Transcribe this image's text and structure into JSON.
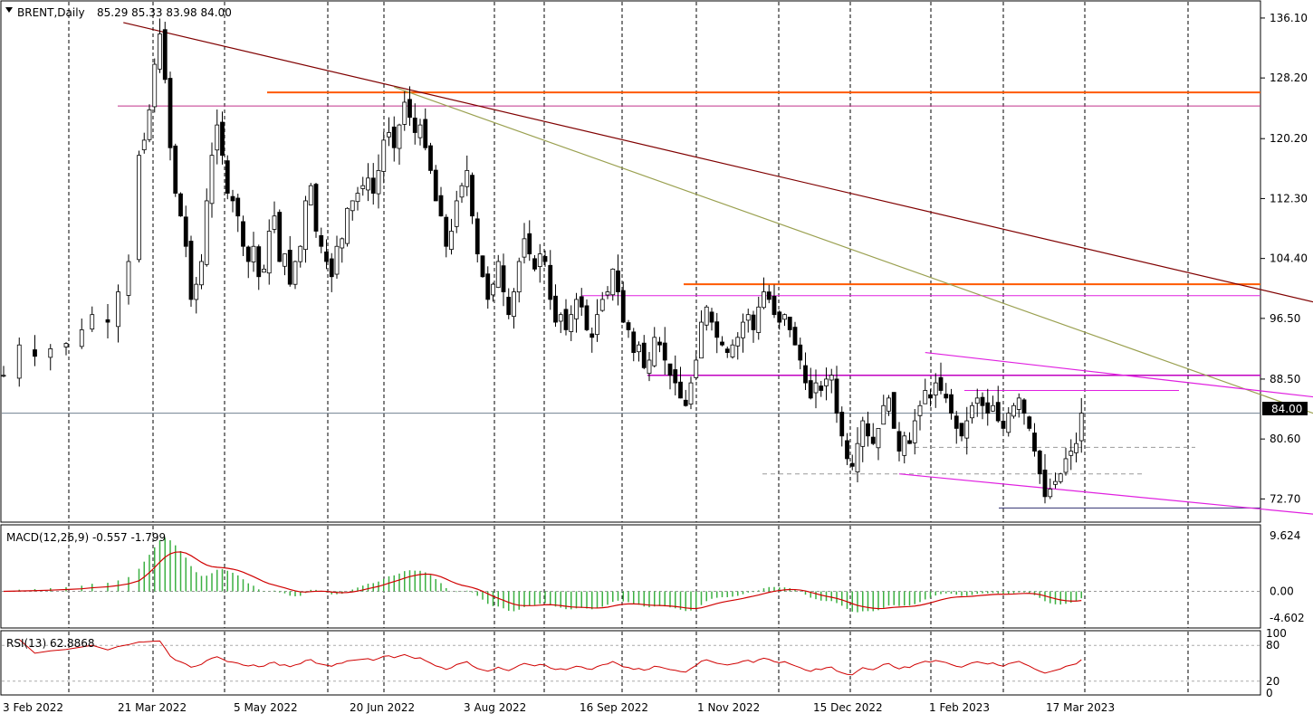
{
  "header": {
    "symbol": "BRENT,Daily",
    "ohlc": "85.29 85.33 83.98 84.00"
  },
  "chart_data": {
    "type": "candlestick",
    "symbol": "BRENT",
    "timeframe": "Daily",
    "last_price": 84.0,
    "price_labels": [
      "136.10",
      "128.20",
      "120.20",
      "112.30",
      "104.40",
      "96.50",
      "88.50",
      "80.60",
      "72.70"
    ],
    "price_label_values": [
      136.1,
      128.2,
      120.2,
      112.3,
      104.4,
      96.5,
      88.5,
      80.6,
      72.7
    ],
    "price_axis": [
      70.0,
      138.0
    ],
    "current_price_label": "84.00",
    "date_labels": [
      "3 Feb 2022",
      "21 Mar 2022",
      "5 May 2022",
      "20 Jun 2022",
      "3 Aug 2022",
      "16 Sep 2022",
      "1 Nov 2022",
      "15 Dec 2022",
      "1 Feb 2023",
      "17 Mar 2023"
    ],
    "price_path": [
      [
        0,
        89.0
      ],
      [
        3,
        93.0
      ],
      [
        6,
        91.5
      ],
      [
        9,
        92.5
      ],
      [
        12,
        93.2
      ],
      [
        15,
        95.0
      ],
      [
        17,
        97.0
      ],
      [
        20,
        96.0
      ],
      [
        22,
        100.0
      ],
      [
        24,
        104.0
      ],
      [
        26,
        118.0
      ],
      [
        27,
        120.0
      ],
      [
        28,
        124.0
      ],
      [
        29,
        130.0
      ],
      [
        30,
        134.0
      ],
      [
        31,
        128.0
      ],
      [
        32,
        119.0
      ],
      [
        33,
        113.0
      ],
      [
        34,
        110.0
      ],
      [
        35,
        106.0
      ],
      [
        36,
        99.0
      ],
      [
        37,
        101.0
      ],
      [
        38,
        104.0
      ],
      [
        39,
        112.0
      ],
      [
        40,
        118.0
      ],
      [
        41,
        122.0
      ],
      [
        42,
        118.0
      ],
      [
        43,
        113.0
      ],
      [
        44,
        112.0
      ],
      [
        45,
        110.0
      ],
      [
        46,
        106.0
      ],
      [
        47,
        104.0
      ],
      [
        48,
        106.0
      ],
      [
        49,
        102.0
      ],
      [
        50,
        103.0
      ],
      [
        51,
        108.0
      ],
      [
        52,
        110.0
      ],
      [
        53,
        104.0
      ],
      [
        54,
        105.0
      ],
      [
        55,
        101.0
      ],
      [
        56,
        104.0
      ],
      [
        57,
        106.0
      ],
      [
        58,
        112.0
      ],
      [
        59,
        114.0
      ],
      [
        60,
        108.0
      ],
      [
        61,
        106.0
      ],
      [
        62,
        104.0
      ],
      [
        63,
        102.0
      ],
      [
        64,
        106.0
      ],
      [
        65,
        107.0
      ],
      [
        66,
        111.0
      ],
      [
        67,
        112.0
      ],
      [
        68,
        113.0
      ],
      [
        69,
        114.0
      ],
      [
        70,
        115.0
      ],
      [
        71,
        113.0
      ],
      [
        72,
        116.0
      ],
      [
        73,
        120.0
      ],
      [
        74,
        121.0
      ],
      [
        75,
        119.0
      ],
      [
        76,
        122.0
      ],
      [
        77,
        125.0
      ],
      [
        78,
        123.0
      ],
      [
        79,
        121.0
      ],
      [
        80,
        122.0
      ],
      [
        81,
        119.0
      ],
      [
        82,
        116.0
      ],
      [
        83,
        112.0
      ],
      [
        84,
        110.0
      ],
      [
        85,
        106.0
      ],
      [
        86,
        108.0
      ],
      [
        87,
        112.0
      ],
      [
        88,
        114.0
      ],
      [
        89,
        116.0
      ],
      [
        90,
        110.0
      ],
      [
        91,
        105.0
      ],
      [
        92,
        102.0
      ],
      [
        93,
        99.0
      ],
      [
        94,
        101.0
      ],
      [
        95,
        104.0
      ],
      [
        96,
        100.0
      ],
      [
        97,
        97.0
      ],
      [
        98,
        100.0
      ],
      [
        99,
        104.0
      ],
      [
        100,
        107.0
      ],
      [
        101,
        105.0
      ],
      [
        102,
        103.0
      ],
      [
        103,
        105.0
      ],
      [
        104,
        104.0
      ],
      [
        105,
        99.0
      ],
      [
        106,
        96.0
      ],
      [
        107,
        97.0
      ],
      [
        108,
        95.0
      ],
      [
        109,
        97.0
      ],
      [
        110,
        99.0
      ],
      [
        111,
        98.0
      ],
      [
        112,
        95.0
      ],
      [
        113,
        94.0
      ],
      [
        114,
        97.0
      ],
      [
        115,
        99.0
      ],
      [
        116,
        100.0
      ],
      [
        117,
        103.0
      ],
      [
        118,
        100.0
      ],
      [
        119,
        96.0
      ],
      [
        120,
        95.0
      ],
      [
        121,
        92.0
      ],
      [
        122,
        93.0
      ],
      [
        123,
        90.0
      ],
      [
        124,
        91.0
      ],
      [
        125,
        94.0
      ],
      [
        126,
        93.0
      ],
      [
        127,
        91.0
      ],
      [
        128,
        89.0
      ],
      [
        129,
        88.0
      ],
      [
        130,
        86.0
      ],
      [
        131,
        85.0
      ],
      [
        132,
        88.0
      ],
      [
        133,
        91.0
      ],
      [
        134,
        96.0
      ],
      [
        135,
        98.0
      ],
      [
        136,
        96.0
      ],
      [
        137,
        94.0
      ],
      [
        138,
        93.0
      ],
      [
        139,
        92.0
      ],
      [
        140,
        93.0
      ],
      [
        141,
        94.0
      ],
      [
        142,
        96.0
      ],
      [
        143,
        97.0
      ],
      [
        144,
        95.0
      ],
      [
        145,
        98.0
      ],
      [
        146,
        100.0
      ],
      [
        147,
        99.0
      ],
      [
        148,
        97.0
      ],
      [
        149,
        96.0
      ],
      [
        150,
        97.0
      ],
      [
        151,
        95.0
      ],
      [
        152,
        93.0
      ],
      [
        153,
        91.0
      ],
      [
        154,
        88.0
      ],
      [
        155,
        86.0
      ],
      [
        156,
        88.0
      ],
      [
        157,
        87.0
      ],
      [
        158,
        88.5
      ],
      [
        159,
        89.0
      ],
      [
        160,
        84.0
      ],
      [
        161,
        81.0
      ],
      [
        162,
        78.0
      ],
      [
        163,
        77.0
      ],
      [
        164,
        80.0
      ],
      [
        165,
        83.0
      ],
      [
        166,
        81.0
      ],
      [
        167,
        80.0
      ],
      [
        168,
        82.0
      ],
      [
        169,
        85.0
      ],
      [
        170,
        86.0
      ],
      [
        171,
        82.0
      ],
      [
        172,
        79.0
      ],
      [
        173,
        81.0
      ],
      [
        174,
        80.0
      ],
      [
        175,
        83.0
      ],
      [
        176,
        85.0
      ],
      [
        177,
        87.0
      ],
      [
        178,
        86.0
      ],
      [
        179,
        88.0
      ],
      [
        180,
        87.0
      ],
      [
        181,
        86.0
      ],
      [
        182,
        84.0
      ],
      [
        183,
        82.0
      ],
      [
        184,
        81.0
      ],
      [
        185,
        83.0
      ],
      [
        186,
        85.0
      ],
      [
        187,
        86.0
      ],
      [
        188,
        85.0
      ],
      [
        189,
        84.0
      ],
      [
        190,
        85.0
      ],
      [
        191,
        83.0
      ],
      [
        192,
        82.0
      ],
      [
        193,
        84.0
      ],
      [
        194,
        85.0
      ],
      [
        195,
        86.0
      ],
      [
        196,
        84.0
      ],
      [
        197,
        82.0
      ],
      [
        198,
        79.0
      ],
      [
        199,
        76.0
      ],
      [
        200,
        73.0
      ],
      [
        201,
        74.0
      ],
      [
        202,
        75.0
      ],
      [
        203,
        76.0
      ],
      [
        204,
        78.0
      ],
      [
        205,
        79.0
      ],
      [
        206,
        80.0
      ],
      [
        207,
        84.0
      ]
    ],
    "levels": {
      "orange": [
        126.3,
        101.0
      ],
      "magenta": [
        124.5,
        99.5,
        89.0
      ],
      "dashed_gray": [
        79.5,
        76.0
      ],
      "dark_blue": [
        71.5
      ]
    },
    "trendlines": [
      {
        "color": "#800000",
        "from": [
          23,
          135.5
        ],
        "to": [
          296,
          91.5
        ]
      },
      {
        "color": "#9aa050",
        "from": [
          75,
          127.0
        ],
        "to": [
          272,
          79.0
        ]
      },
      {
        "color": "#e020e0",
        "from": [
          177,
          92.0
        ],
        "to": [
          279,
          84.0
        ]
      },
      {
        "color": "#e020e0",
        "from": [
          172,
          76.0
        ],
        "to": [
          262,
          70.0
        ]
      }
    ],
    "macd": {
      "label": "MACD(12,26,9) -0.557 -1.799",
      "scale_labels": [
        "9.624",
        "0.00",
        "-4.602"
      ],
      "scale_values": [
        9.624,
        0.0,
        -4.602
      ],
      "axis": [
        -6.0,
        11.0
      ]
    },
    "rsi": {
      "label": "RSI(13) 62.8868",
      "scale_labels": [
        "100",
        "80",
        "20",
        "0"
      ],
      "scale_values": [
        100,
        80,
        20,
        0
      ],
      "axis": [
        0,
        100
      ]
    }
  }
}
